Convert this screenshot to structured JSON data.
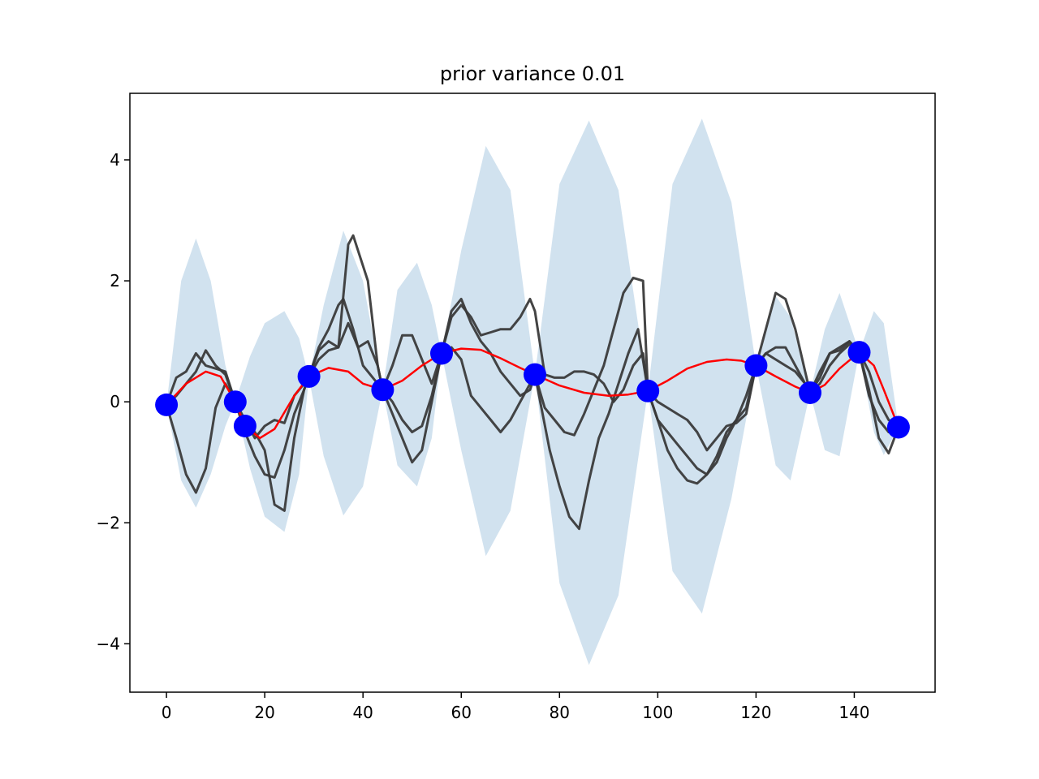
{
  "chart_data": {
    "type": "line",
    "title": "prior variance 0.01",
    "xlabel": "",
    "ylabel": "",
    "xlim": [
      -7.45,
      156.45
    ],
    "ylim": [
      -4.8,
      5.1
    ],
    "xticks": [
      0,
      20,
      40,
      60,
      80,
      100,
      120,
      140
    ],
    "yticks": [
      -4,
      -2,
      0,
      2,
      4
    ],
    "ytick_labels": [
      "−4",
      "−2",
      "0",
      "2",
      "4"
    ],
    "grid": false,
    "colors": {
      "band": "#d1e2ef",
      "mean": "#ff0000",
      "samples": "#3a3a3a",
      "observations": "#0000ff",
      "axes": "#000000"
    },
    "confidence_band": {
      "name": "",
      "x": [
        0,
        3,
        6,
        9,
        12,
        14,
        17,
        20,
        24,
        27,
        29,
        32,
        36,
        40,
        44,
        47,
        51,
        54,
        56,
        60,
        65,
        70,
        75,
        80,
        86,
        92,
        98,
        103,
        109,
        115,
        120,
        124,
        127,
        131,
        134,
        137,
        141,
        144,
        146,
        149
      ],
      "upper": [
        -0.05,
        2.0,
        2.7,
        2.0,
        0.6,
        0.0,
        0.75,
        1.3,
        1.5,
        1.05,
        0.4,
        1.6,
        2.83,
        2.0,
        0.2,
        1.85,
        2.3,
        1.6,
        0.8,
        2.5,
        4.23,
        3.5,
        0.45,
        3.6,
        4.65,
        3.5,
        0.18,
        3.6,
        4.68,
        3.3,
        0.6,
        1.75,
        1.4,
        0.15,
        1.2,
        1.8,
        0.82,
        1.5,
        1.3,
        -0.42
      ],
      "lower": [
        -0.05,
        -1.3,
        -1.75,
        -1.2,
        -0.4,
        0.0,
        -1.1,
        -1.9,
        -2.15,
        -1.2,
        0.4,
        -0.9,
        -1.88,
        -1.4,
        0.2,
        -1.05,
        -1.4,
        -0.6,
        0.8,
        -0.8,
        -2.55,
        -1.8,
        0.45,
        -3.0,
        -4.35,
        -3.2,
        0.18,
        -2.8,
        -3.5,
        -1.6,
        0.6,
        -1.05,
        -1.3,
        0.15,
        -0.8,
        -0.9,
        0.82,
        -0.5,
        -0.88,
        -0.42
      ]
    },
    "series": [
      {
        "name": "",
        "role": "mean",
        "x": [
          0,
          4,
          8,
          11,
          14,
          16,
          19,
          22,
          26,
          29,
          33,
          37,
          40,
          44,
          48,
          52,
          56,
          60,
          64,
          68,
          72,
          75,
          80,
          85,
          90,
          94,
          98,
          102,
          106,
          110,
          114,
          117,
          120,
          124,
          128,
          131,
          134,
          137,
          141,
          144,
          146,
          149
        ],
        "y": [
          -0.05,
          0.3,
          0.5,
          0.42,
          0.0,
          -0.4,
          -0.6,
          -0.45,
          0.1,
          0.42,
          0.56,
          0.5,
          0.3,
          0.2,
          0.35,
          0.6,
          0.8,
          0.88,
          0.86,
          0.72,
          0.56,
          0.45,
          0.27,
          0.15,
          0.1,
          0.12,
          0.18,
          0.35,
          0.55,
          0.66,
          0.7,
          0.68,
          0.6,
          0.42,
          0.25,
          0.15,
          0.28,
          0.55,
          0.82,
          0.6,
          0.2,
          -0.42
        ]
      },
      {
        "name": "",
        "role": "sample",
        "x": [
          0,
          2,
          4,
          6,
          8,
          10,
          12,
          14,
          16,
          18,
          20,
          22,
          24,
          26,
          28,
          29,
          31,
          33,
          35,
          36,
          38,
          40,
          42,
          44,
          46,
          48,
          50,
          52,
          54,
          56,
          58,
          60,
          62,
          64,
          66,
          68,
          70,
          72,
          74,
          75,
          78,
          80,
          82,
          84,
          86,
          88,
          90,
          92,
          94,
          96,
          98,
          100,
          102,
          104,
          106,
          108,
          110,
          112,
          114,
          116,
          118,
          120,
          122,
          124,
          126,
          128,
          130,
          131,
          133,
          135,
          137,
          139,
          141,
          143,
          145,
          147,
          149
        ],
        "y": [
          -0.05,
          -0.6,
          -1.2,
          -1.5,
          -1.1,
          -0.1,
          0.3,
          0.0,
          -0.4,
          -0.5,
          -0.8,
          -1.7,
          -1.8,
          -0.6,
          0.2,
          0.42,
          0.9,
          1.2,
          1.6,
          1.7,
          1.2,
          0.6,
          0.4,
          0.2,
          -0.2,
          -0.6,
          -1.0,
          -0.8,
          0.0,
          0.8,
          0.9,
          0.7,
          0.1,
          -0.1,
          -0.3,
          -0.5,
          -0.3,
          0.0,
          0.3,
          0.45,
          -0.8,
          -1.4,
          -1.9,
          -2.1,
          -1.3,
          -0.6,
          -0.2,
          0.3,
          0.8,
          1.2,
          0.18,
          -0.3,
          -0.8,
          -1.1,
          -1.3,
          -1.35,
          -1.2,
          -1.0,
          -0.6,
          -0.3,
          0.1,
          0.6,
          1.2,
          1.8,
          1.7,
          1.2,
          0.5,
          0.15,
          0.4,
          0.8,
          0.9,
          1.0,
          0.82,
          0.2,
          -0.6,
          -0.85,
          -0.42
        ]
      },
      {
        "name": "",
        "role": "sample",
        "x": [
          0,
          2,
          4,
          6,
          8,
          10,
          12,
          14,
          16,
          18,
          20,
          22,
          24,
          26,
          28,
          29,
          31,
          33,
          35,
          37,
          38,
          39,
          41,
          43,
          44,
          46,
          48,
          50,
          52,
          54,
          56,
          58,
          60,
          62,
          64,
          66,
          68,
          70,
          72,
          74,
          75,
          77,
          79,
          81,
          83,
          85,
          87,
          89,
          91,
          93,
          95,
          97,
          98,
          100,
          102,
          104,
          106,
          108,
          110,
          112,
          114,
          116,
          118,
          120,
          122,
          124,
          126,
          128,
          130,
          131,
          133,
          135,
          137,
          139,
          141,
          143,
          145,
          147,
          149
        ],
        "y": [
          -0.05,
          0.4,
          0.5,
          0.8,
          0.6,
          0.55,
          0.5,
          0.0,
          -0.5,
          -0.9,
          -1.2,
          -1.25,
          -0.8,
          -0.2,
          0.2,
          0.42,
          0.85,
          1.0,
          0.9,
          2.6,
          2.75,
          2.5,
          2.0,
          0.6,
          0.2,
          0.0,
          -0.3,
          -0.5,
          -0.4,
          0.1,
          0.8,
          1.5,
          1.7,
          1.3,
          1.0,
          0.8,
          0.5,
          0.3,
          0.1,
          0.2,
          0.45,
          -0.1,
          -0.3,
          -0.5,
          -0.55,
          -0.2,
          0.2,
          0.6,
          1.2,
          1.8,
          2.05,
          2.0,
          0.18,
          -0.3,
          -0.5,
          -0.7,
          -0.9,
          -1.1,
          -1.2,
          -0.9,
          -0.5,
          -0.3,
          -0.1,
          0.6,
          0.8,
          0.9,
          0.9,
          0.6,
          0.3,
          0.15,
          0.5,
          0.8,
          0.85,
          1.0,
          0.82,
          0.1,
          -0.3,
          -0.5,
          -0.42
        ]
      },
      {
        "name": "",
        "role": "sample",
        "x": [
          0,
          2,
          4,
          6,
          8,
          10,
          12,
          14,
          16,
          18,
          20,
          22,
          24,
          26,
          28,
          29,
          31,
          33,
          35,
          37,
          39,
          41,
          43,
          44,
          46,
          48,
          50,
          52,
          54,
          56,
          58,
          60,
          62,
          64,
          66,
          68,
          70,
          72,
          74,
          75,
          77,
          79,
          81,
          83,
          85,
          87,
          89,
          91,
          93,
          95,
          97,
          98,
          100,
          102,
          104,
          106,
          108,
          110,
          112,
          114,
          116,
          118,
          120,
          122,
          124,
          126,
          128,
          130,
          131,
          133,
          135,
          137,
          139,
          141,
          143,
          145,
          147,
          149
        ],
        "y": [
          -0.05,
          0.1,
          0.3,
          0.5,
          0.85,
          0.6,
          0.45,
          0.0,
          -0.3,
          -0.6,
          -0.4,
          -0.3,
          -0.35,
          0.1,
          0.3,
          0.42,
          0.7,
          0.85,
          0.9,
          1.3,
          0.9,
          1.0,
          0.6,
          0.2,
          0.6,
          1.1,
          1.1,
          0.7,
          0.3,
          0.8,
          1.4,
          1.6,
          1.4,
          1.1,
          1.15,
          1.2,
          1.2,
          1.4,
          1.7,
          1.5,
          0.45,
          0.4,
          0.4,
          0.5,
          0.5,
          0.45,
          0.3,
          0.0,
          0.2,
          0.6,
          0.8,
          0.18,
          0.0,
          -0.1,
          -0.2,
          -0.3,
          -0.5,
          -0.8,
          -0.6,
          -0.4,
          -0.35,
          -0.2,
          0.6,
          0.8,
          0.7,
          0.6,
          0.5,
          0.3,
          0.15,
          0.3,
          0.6,
          0.8,
          0.95,
          0.82,
          0.5,
          0.0,
          -0.3,
          -0.42
        ]
      }
    ],
    "observations": {
      "name": "",
      "x": [
        0,
        14,
        16,
        29,
        44,
        56,
        75,
        98,
        120,
        131,
        141,
        149
      ],
      "y": [
        -0.05,
        0.0,
        -0.4,
        0.42,
        0.2,
        0.8,
        0.45,
        0.18,
        0.6,
        0.15,
        0.82,
        -0.42
      ]
    }
  }
}
